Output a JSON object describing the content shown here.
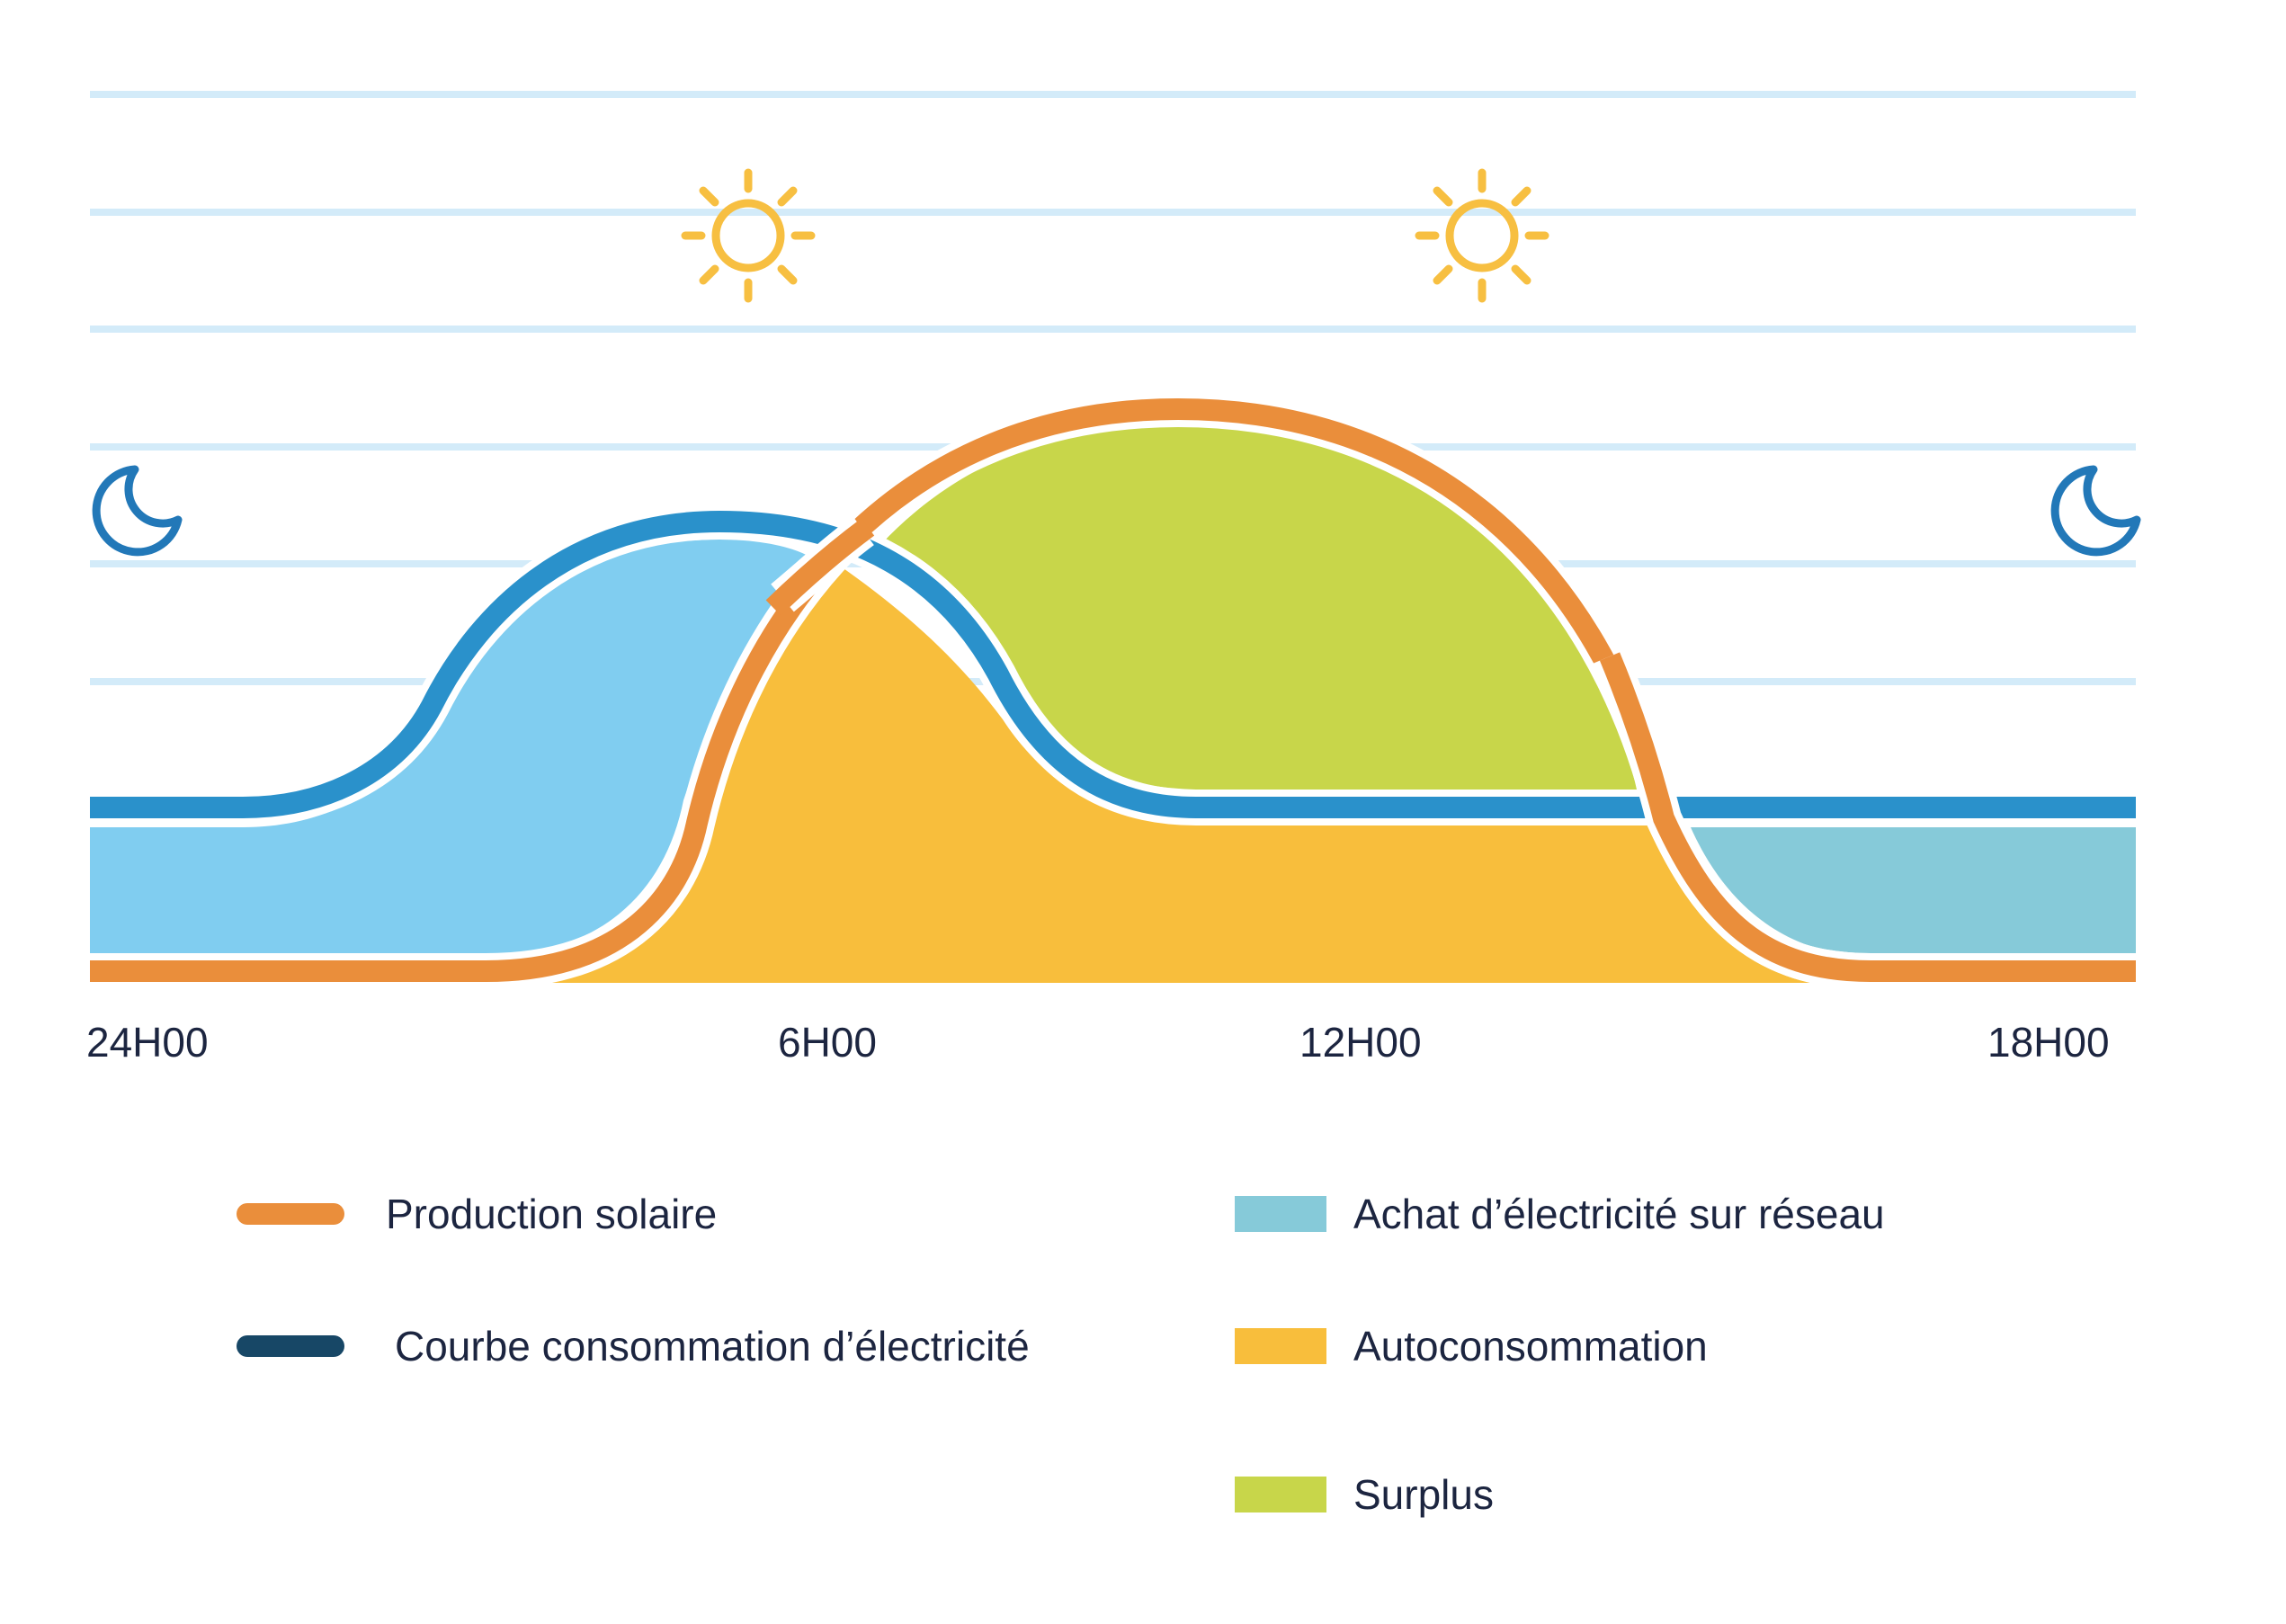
{
  "colors": {
    "production": "#ea8e3b",
    "consumption": "#2a91cb",
    "consumption_legend": "#174766",
    "grid_purchase_night": "#80cdf0",
    "grid_purchase_evening": "#86cad9",
    "self_consumption": "#f8be3c",
    "surplus": "#c8d64a",
    "gridline": "#d3ebf9",
    "sun": "#f7bf41",
    "moon": "#2278b8",
    "text": "#1c2540"
  },
  "icons": {
    "sun": "sun-icon",
    "moon": "moon-icon"
  },
  "axis": {
    "ticks": [
      "24H00",
      "6H00",
      "12H00",
      "18H00"
    ]
  },
  "legend": {
    "production_label": "Production solaire",
    "consumption_label": "Courbe consommation d’électricité",
    "grid_purchase_label": "Achat d’électricité sur réseau",
    "self_consumption_label": "Autoconsommation",
    "surplus_label": "Surplus"
  }
}
